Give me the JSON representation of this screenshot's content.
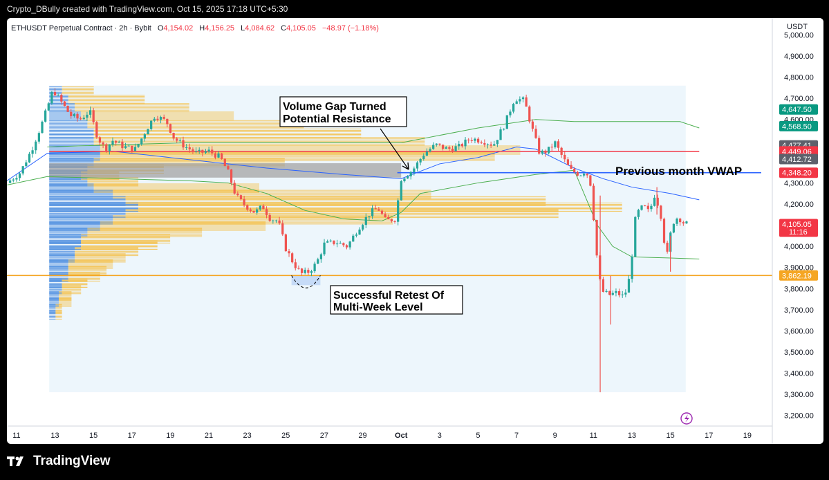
{
  "header": {
    "attribution": "Crypto_DBully created with TradingView.com, Oct 15, 2025 17:18 UTC+5:30"
  },
  "footer": {
    "brand": "TradingView"
  },
  "colors": {
    "up": "#26a69a",
    "down": "#ef5350",
    "resistance": "#f23645",
    "vwap": "#2962ff",
    "support": "#f5a623",
    "gap": "#9e9e9e",
    "band": "#4caf50",
    "profile_blue": "#4f8fe0",
    "profile_yellow": "#f5c04a"
  },
  "chart_data": {
    "type": "candlestick",
    "symbol_line": {
      "symbol": "ETHUSDT Perpetual Contract · 2h · Bybit",
      "o_label": "O",
      "o_value": "4,154.02",
      "h_label": "H",
      "h_value": "4,156.25",
      "l_label": "L",
      "l_value": "4,084.62",
      "c_label": "C",
      "c_value": "4,105.05",
      "change": "−48.97 (−1.18%)"
    },
    "currency": "USDT",
    "ylim": [
      3150,
      5080
    ],
    "y_ticks": [
      {
        "value": 5000,
        "label": "5,000.00"
      },
      {
        "value": 4900,
        "label": "4,900.00"
      },
      {
        "value": 4800,
        "label": "4,800.00"
      },
      {
        "value": 4700,
        "label": "4,700.00"
      },
      {
        "value": 4600,
        "label": "4,600.00"
      },
      {
        "value": 4300,
        "label": "4,300.00"
      },
      {
        "value": 4200,
        "label": "4,200.00"
      },
      {
        "value": 4000,
        "label": "4,000.00"
      },
      {
        "value": 3900,
        "label": "3,900.00"
      },
      {
        "value": 3800,
        "label": "3,800.00"
      },
      {
        "value": 3700,
        "label": "3,700.00"
      },
      {
        "value": 3600,
        "label": "3,600.00"
      },
      {
        "value": 3500,
        "label": "3,500.00"
      },
      {
        "value": 3400,
        "label": "3,400.00"
      },
      {
        "value": 3300,
        "label": "3,300.00"
      },
      {
        "value": 3200,
        "label": "3,200.00"
      }
    ],
    "x_ticks": [
      {
        "day": 11,
        "label": "11"
      },
      {
        "day": 13,
        "label": "13"
      },
      {
        "day": 15,
        "label": "15"
      },
      {
        "day": 17,
        "label": "17"
      },
      {
        "day": 19,
        "label": "19"
      },
      {
        "day": 21,
        "label": "21"
      },
      {
        "day": 23,
        "label": "23"
      },
      {
        "day": 25,
        "label": "25"
      },
      {
        "day": 27,
        "label": "27"
      },
      {
        "day": 29,
        "label": "29"
      },
      {
        "day": 31,
        "label": "Oct"
      },
      {
        "day": 33,
        "label": "3"
      },
      {
        "day": 35,
        "label": "5"
      },
      {
        "day": 37,
        "label": "7"
      },
      {
        "day": 39,
        "label": "9"
      },
      {
        "day": 41,
        "label": "11"
      },
      {
        "day": 43,
        "label": "13"
      },
      {
        "day": 45,
        "label": "15"
      },
      {
        "day": 47,
        "label": "17"
      },
      {
        "day": 49,
        "label": "19"
      }
    ],
    "x_range": [
      10.5,
      50.3
    ],
    "price_path": [
      [
        10.5,
        4300
      ],
      [
        11.2,
        4350
      ],
      [
        11.8,
        4460
      ],
      [
        12.4,
        4600
      ],
      [
        12.9,
        4740
      ],
      [
        13.2,
        4700
      ],
      [
        13.8,
        4620
      ],
      [
        14.3,
        4600
      ],
      [
        14.8,
        4640
      ],
      [
        15.2,
        4520
      ],
      [
        15.6,
        4460
      ],
      [
        16.0,
        4500
      ],
      [
        16.6,
        4470
      ],
      [
        17.2,
        4460
      ],
      [
        17.8,
        4560
      ],
      [
        18.2,
        4620
      ],
      [
        18.8,
        4590
      ],
      [
        19.2,
        4510
      ],
      [
        19.8,
        4470
      ],
      [
        20.4,
        4440
      ],
      [
        21.0,
        4450
      ],
      [
        21.6,
        4420
      ],
      [
        22.0,
        4350
      ],
      [
        22.4,
        4240
      ],
      [
        22.8,
        4200
      ],
      [
        23.4,
        4160
      ],
      [
        23.8,
        4190
      ],
      [
        24.2,
        4130
      ],
      [
        24.6,
        4120
      ],
      [
        25.0,
        3990
      ],
      [
        25.4,
        3920
      ],
      [
        25.8,
        3870
      ],
      [
        26.2,
        3880
      ],
      [
        26.6,
        3920
      ],
      [
        27.0,
        4010
      ],
      [
        27.6,
        4020
      ],
      [
        28.2,
        4000
      ],
      [
        28.8,
        4090
      ],
      [
        29.4,
        4160
      ],
      [
        29.8,
        4180
      ],
      [
        30.2,
        4120
      ],
      [
        30.7,
        4130
      ],
      [
        31.0,
        4320
      ],
      [
        31.6,
        4360
      ],
      [
        32.2,
        4440
      ],
      [
        32.8,
        4480
      ],
      [
        33.4,
        4460
      ],
      [
        34.0,
        4470
      ],
      [
        34.6,
        4510
      ],
      [
        35.2,
        4500
      ],
      [
        35.8,
        4480
      ],
      [
        36.4,
        4580
      ],
      [
        36.9,
        4700
      ],
      [
        37.4,
        4690
      ],
      [
        37.8,
        4560
      ],
      [
        38.2,
        4440
      ],
      [
        38.6,
        4450
      ],
      [
        39.0,
        4490
      ],
      [
        39.4,
        4420
      ],
      [
        39.8,
        4360
      ],
      [
        40.3,
        4340
      ],
      [
        40.6,
        4360
      ],
      [
        40.9,
        4280
      ],
      [
        41.1,
        4010
      ],
      [
        41.4,
        3790
      ],
      [
        41.8,
        3770
      ],
      [
        42.2,
        3780
      ],
      [
        42.6,
        3760
      ],
      [
        42.9,
        3860
      ],
      [
        43.2,
        4150
      ],
      [
        43.6,
        4190
      ],
      [
        43.9,
        4160
      ],
      [
        44.2,
        4250
      ],
      [
        44.5,
        4150
      ],
      [
        44.8,
        3940
      ],
      [
        45.1,
        4110
      ],
      [
        45.4,
        4140
      ],
      [
        45.7,
        4110
      ],
      [
        45.9,
        4105
      ]
    ],
    "candle_spacing_days": 0.1667,
    "wicks": [
      {
        "x": 41.35,
        "low": 3310,
        "high": 4240
      },
      {
        "x": 41.9,
        "low": 3630,
        "high": 3860
      },
      {
        "x": 45.0,
        "low": 3880,
        "high": 4050
      },
      {
        "x": 44.3,
        "low": 4150,
        "high": 4280
      }
    ],
    "volume_profile": {
      "x_start": 12.7,
      "x_end": 45.8,
      "price_low": 3310,
      "price_high": 4760,
      "bins": [
        {
          "p": 4740,
          "blue": 0.02,
          "yellow": 0.05
        },
        {
          "p": 4700,
          "blue": 0.03,
          "yellow": 0.12
        },
        {
          "p": 4660,
          "blue": 0.04,
          "yellow": 0.18
        },
        {
          "p": 4620,
          "blue": 0.05,
          "yellow": 0.24
        },
        {
          "p": 4580,
          "blue": 0.06,
          "yellow": 0.34
        },
        {
          "p": 4540,
          "blue": 0.07,
          "yellow": 0.42
        },
        {
          "p": 4500,
          "blue": 0.07,
          "yellow": 0.52
        },
        {
          "p": 4460,
          "blue": 0.08,
          "yellow": 0.66
        },
        {
          "p": 4430,
          "blue": 0.08,
          "yellow": 0.62
        },
        {
          "p": 4400,
          "blue": 0.07,
          "yellow": 0.3
        },
        {
          "p": 4370,
          "blue": 0.06,
          "yellow": 0.12
        },
        {
          "p": 4340,
          "blue": 0.05,
          "yellow": 0.06
        },
        {
          "p": 4310,
          "blue": 0.06,
          "yellow": 0.08
        },
        {
          "p": 4280,
          "blue": 0.07,
          "yellow": 0.26
        },
        {
          "p": 4250,
          "blue": 0.1,
          "yellow": 0.5
        },
        {
          "p": 4220,
          "blue": 0.12,
          "yellow": 0.66
        },
        {
          "p": 4190,
          "blue": 0.14,
          "yellow": 0.76
        },
        {
          "p": 4160,
          "blue": 0.12,
          "yellow": 0.68
        },
        {
          "p": 4130,
          "blue": 0.1,
          "yellow": 0.44
        },
        {
          "p": 4100,
          "blue": 0.08,
          "yellow": 0.26
        },
        {
          "p": 4070,
          "blue": 0.06,
          "yellow": 0.18
        },
        {
          "p": 4040,
          "blue": 0.05,
          "yellow": 0.14
        },
        {
          "p": 4010,
          "blue": 0.05,
          "yellow": 0.12
        },
        {
          "p": 3980,
          "blue": 0.04,
          "yellow": 0.1
        },
        {
          "p": 3950,
          "blue": 0.04,
          "yellow": 0.08
        },
        {
          "p": 3920,
          "blue": 0.03,
          "yellow": 0.07
        },
        {
          "p": 3890,
          "blue": 0.03,
          "yellow": 0.06
        },
        {
          "p": 3860,
          "blue": 0.03,
          "yellow": 0.05
        },
        {
          "p": 3830,
          "blue": 0.02,
          "yellow": 0.04
        },
        {
          "p": 3800,
          "blue": 0.02,
          "yellow": 0.03
        },
        {
          "p": 3770,
          "blue": 0.015,
          "yellow": 0.02
        },
        {
          "p": 3740,
          "blue": 0.015,
          "yellow": 0.02
        },
        {
          "p": 3710,
          "blue": 0.01,
          "yellow": 0.01
        },
        {
          "p": 3680,
          "blue": 0.01,
          "yellow": 0.01
        }
      ]
    },
    "lines": {
      "resistance": 4449.06,
      "previous_month_vwap": 4348.2,
      "support": 3862.19,
      "upper_band": [
        [
          12.6,
          4470
        ],
        [
          16.0,
          4480
        ],
        [
          20.0,
          4490
        ],
        [
          25.0,
          4490
        ],
        [
          31.0,
          4490
        ],
        [
          35.0,
          4560
        ],
        [
          38.0,
          4600
        ],
        [
          40.0,
          4590
        ],
        [
          43.0,
          4590
        ],
        [
          45.5,
          4590
        ],
        [
          46.5,
          4560
        ]
      ],
      "vwap": [
        [
          10.5,
          4310
        ],
        [
          12.6,
          4440
        ],
        [
          16.0,
          4450
        ],
        [
          20.0,
          4410
        ],
        [
          24.0,
          4370
        ],
        [
          28.0,
          4340
        ],
        [
          31.0,
          4320
        ],
        [
          33.0,
          4390
        ],
        [
          35.0,
          4420
        ],
        [
          37.0,
          4470
        ],
        [
          38.0,
          4460
        ],
        [
          40.0,
          4370
        ],
        [
          41.5,
          4320
        ],
        [
          43.0,
          4280
        ],
        [
          45.0,
          4250
        ],
        [
          46.5,
          4220
        ]
      ],
      "lower_band": [
        [
          10.5,
          4290
        ],
        [
          12.6,
          4330
        ],
        [
          20.0,
          4310
        ],
        [
          22.0,
          4300
        ],
        [
          24.0,
          4250
        ],
        [
          26.0,
          4170
        ],
        [
          28.0,
          4130
        ],
        [
          30.0,
          4120
        ],
        [
          31.0,
          4160
        ],
        [
          32.0,
          4250
        ],
        [
          35.0,
          4300
        ],
        [
          38.0,
          4340
        ],
        [
          40.0,
          4360
        ],
        [
          41.2,
          4100
        ],
        [
          42.0,
          4000
        ],
        [
          43.0,
          3950
        ],
        [
          45.0,
          3945
        ],
        [
          46.5,
          3940
        ]
      ]
    },
    "volume_gap": {
      "x_start": 12.7,
      "x_end": 31.0,
      "low": 4325,
      "high": 4393
    },
    "price_badges": [
      {
        "label": "4,647.50",
        "value": 4647.5,
        "color": "#089981"
      },
      {
        "label": "4,568.50",
        "value": 4568.5,
        "color": "#089981"
      },
      {
        "label": "4,477.41",
        "value": 4477.41,
        "color": "#5d606b"
      },
      {
        "label": "4,449.06",
        "value": 4449.06,
        "color": "#f23645"
      },
      {
        "label": "4,412.72",
        "value": 4412.72,
        "color": "#5d606b"
      },
      {
        "label": "4,348.20",
        "value": 4348.2,
        "color": "#f23645"
      },
      {
        "label": "4,105.05",
        "value": 4105.05,
        "color": "#f23645",
        "sub": "11:16"
      },
      {
        "label": "3,862.19",
        "value": 3862.19,
        "color": "#f5a623"
      }
    ],
    "annotations": {
      "gap_label_1": "Volume Gap Turned",
      "gap_label_2": "Potential Resistance",
      "vwap_label": "Previous month VWAP",
      "retest_label_1": "Successful Retest Of",
      "retest_label_2": "Multi-Week Level"
    }
  }
}
